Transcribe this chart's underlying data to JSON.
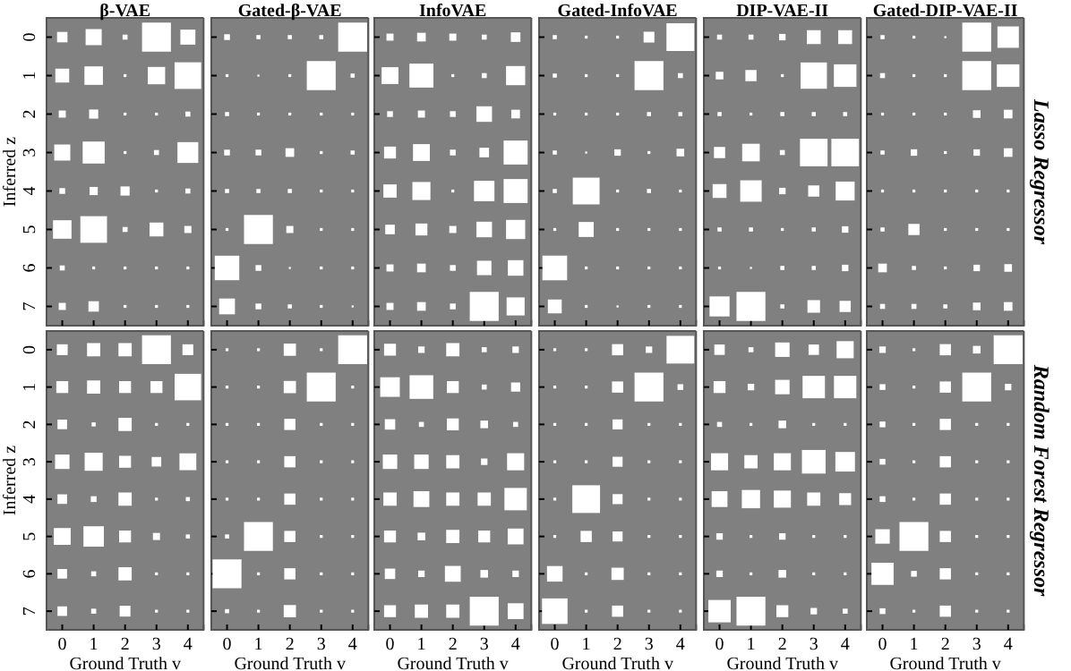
{
  "chart_data": [
    {
      "type": "bubble",
      "title": "β-VAE",
      "ylabel": "Inferred z",
      "tick_labels": "y",
      "marker": "square",
      "color": "#ffffff",
      "xlim": [
        -0.5,
        4.5
      ],
      "ylim": [
        7.5,
        -0.5
      ],
      "xticks": [
        0,
        1,
        2,
        3,
        4
      ],
      "yticks": [
        0,
        1,
        2,
        3,
        4,
        5,
        6,
        7
      ],
      "x": [
        0,
        1,
        2,
        3,
        4,
        0,
        1,
        2,
        3,
        4,
        0,
        1,
        2,
        3,
        4,
        0,
        1,
        2,
        3,
        4,
        0,
        1,
        2,
        3,
        4,
        0,
        1,
        2,
        3,
        4,
        0,
        1,
        2,
        3,
        4,
        0,
        1,
        2,
        3,
        4
      ],
      "values": [
        0,
        0,
        0,
        0,
        0,
        1,
        1,
        1,
        1,
        1,
        2,
        2,
        2,
        2,
        2,
        3,
        3,
        3,
        3,
        3,
        4,
        4,
        4,
        4,
        4,
        5,
        5,
        5,
        5,
        5,
        6,
        6,
        6,
        6,
        6,
        7,
        7,
        7,
        7,
        7
      ],
      "sizes": [
        0.13,
        0.31,
        0.03,
        1,
        0.27,
        0.23,
        0.41,
        0.01,
        0.36,
        0.85,
        0.06,
        0.1,
        0.01,
        0.01,
        0.03,
        0.31,
        0.58,
        0.01,
        0.03,
        0.52,
        0.04,
        0.08,
        0.1,
        0.01,
        0.03,
        0.41,
        0.85,
        0.03,
        0.23,
        0.06,
        0.03,
        0.01,
        0.01,
        0.01,
        0.01,
        0.06,
        0.13,
        0.01,
        0.01,
        0.01
      ]
    },
    {
      "type": "bubble",
      "title": "Gated-β-VAE",
      "tick_labels": false,
      "marker": "square",
      "color": "#ffffff",
      "xlim": [
        -0.5,
        4.5
      ],
      "ylim": [
        7.5,
        -0.5
      ],
      "xticks": [
        0,
        1,
        2,
        3,
        4
      ],
      "yticks": [
        0,
        1,
        2,
        3,
        4,
        5,
        6,
        7
      ],
      "x": [
        0,
        1,
        2,
        3,
        4,
        0,
        1,
        2,
        3,
        4,
        0,
        1,
        2,
        3,
        4,
        0,
        1,
        2,
        3,
        4,
        0,
        1,
        2,
        3,
        4,
        0,
        1,
        2,
        3,
        4,
        0,
        1,
        2,
        3,
        4,
        0,
        1,
        2,
        3,
        4
      ],
      "values": [
        0,
        0,
        0,
        0,
        0,
        1,
        1,
        1,
        1,
        1,
        2,
        2,
        2,
        2,
        2,
        3,
        3,
        3,
        3,
        3,
        4,
        4,
        4,
        4,
        4,
        5,
        5,
        5,
        5,
        5,
        6,
        6,
        6,
        6,
        6,
        7,
        7,
        7,
        7,
        7
      ],
      "sizes": [
        0.04,
        0.02,
        0.02,
        0.02,
        1,
        0.01,
        0.005,
        0.01,
        1,
        0.02,
        0.02,
        0.01,
        0.01,
        0.01,
        0.01,
        0.04,
        0.04,
        0.09,
        0.01,
        0.02,
        0.02,
        0.02,
        0.02,
        0.01,
        0.01,
        0.01,
        1,
        0.06,
        0.01,
        0.01,
        0.72,
        0.04,
        0.005,
        0.01,
        0.01,
        0.3,
        0.04,
        0.02,
        0.01,
        0.005
      ]
    },
    {
      "type": "bubble",
      "title": "InfoVAE",
      "tick_labels": false,
      "marker": "square",
      "color": "#ffffff",
      "xlim": [
        -0.5,
        4.5
      ],
      "ylim": [
        7.5,
        -0.5
      ],
      "xticks": [
        0,
        1,
        2,
        3,
        4
      ],
      "yticks": [
        0,
        1,
        2,
        3,
        4,
        5,
        6,
        7
      ],
      "x": [
        0,
        1,
        2,
        3,
        4,
        0,
        1,
        2,
        3,
        4,
        0,
        1,
        2,
        3,
        4,
        0,
        1,
        2,
        3,
        4,
        0,
        1,
        2,
        3,
        4,
        0,
        1,
        2,
        3,
        4,
        0,
        1,
        2,
        3,
        4,
        0,
        1,
        2,
        3,
        4
      ],
      "values": [
        0,
        0,
        0,
        0,
        0,
        1,
        1,
        1,
        1,
        1,
        2,
        2,
        2,
        2,
        2,
        3,
        3,
        3,
        3,
        3,
        4,
        4,
        4,
        4,
        4,
        5,
        5,
        5,
        5,
        5,
        6,
        6,
        6,
        6,
        6,
        7,
        7,
        7,
        7,
        7
      ],
      "sizes": [
        0.06,
        0.09,
        0.06,
        0.03,
        0.11,
        0.34,
        0.69,
        0.01,
        0.03,
        0.44,
        0.04,
        0.06,
        0.04,
        0.29,
        0.09,
        0.17,
        0.34,
        0.04,
        0.11,
        0.69,
        0.21,
        0.39,
        0.01,
        0.5,
        0.69,
        0.11,
        0.17,
        0.06,
        0.29,
        0.44,
        0.06,
        0.09,
        0.04,
        0.25,
        0.29,
        0.06,
        0.09,
        0.04,
        1,
        0.39
      ]
    },
    {
      "type": "bubble",
      "title": "Gated-InfoVAE",
      "tick_labels": false,
      "marker": "square",
      "color": "#ffffff",
      "xlim": [
        -0.5,
        4.5
      ],
      "ylim": [
        7.5,
        -0.5
      ],
      "xticks": [
        0,
        1,
        2,
        3,
        4
      ],
      "yticks": [
        0,
        1,
        2,
        3,
        4,
        5,
        6,
        7
      ],
      "x": [
        0,
        1,
        2,
        3,
        4,
        0,
        1,
        2,
        3,
        4,
        0,
        1,
        2,
        3,
        4,
        0,
        1,
        2,
        3,
        4,
        0,
        1,
        2,
        3,
        4,
        0,
        1,
        2,
        3,
        4,
        0,
        1,
        2,
        3,
        4,
        0,
        1,
        2,
        3,
        4
      ],
      "values": [
        0,
        0,
        0,
        0,
        0,
        1,
        1,
        1,
        1,
        1,
        2,
        2,
        2,
        2,
        2,
        3,
        3,
        3,
        3,
        3,
        4,
        4,
        4,
        4,
        4,
        5,
        5,
        5,
        5,
        5,
        6,
        6,
        6,
        6,
        6,
        7,
        7,
        7,
        7,
        7
      ],
      "sizes": [
        0.02,
        0.01,
        0.01,
        0.14,
        0.93,
        0.02,
        0.01,
        0.01,
        1,
        0.03,
        0.01,
        0.01,
        0.01,
        0.02,
        0.02,
        0.02,
        0.005,
        0.05,
        0.01,
        0.07,
        0.02,
        0.86,
        0.01,
        0.02,
        0.01,
        0.01,
        0.27,
        0.01,
        0.01,
        0.01,
        0.73,
        0.01,
        0.01,
        0.01,
        0.01,
        0.23,
        0.01,
        0.005,
        0.01,
        0.01
      ]
    },
    {
      "type": "bubble",
      "title": "DIP-VAE-II",
      "tick_labels": false,
      "marker": "square",
      "color": "#ffffff",
      "xlim": [
        -0.5,
        4.5
      ],
      "ylim": [
        7.5,
        -0.5
      ],
      "xticks": [
        0,
        1,
        2,
        3,
        4
      ],
      "yticks": [
        0,
        1,
        2,
        3,
        4,
        5,
        6,
        7
      ],
      "x": [
        0,
        1,
        2,
        3,
        4,
        0,
        1,
        2,
        3,
        4,
        0,
        1,
        2,
        3,
        4,
        0,
        1,
        2,
        3,
        4,
        0,
        1,
        2,
        3,
        4,
        0,
        1,
        2,
        3,
        4,
        0,
        1,
        2,
        3,
        4,
        0,
        1,
        2,
        3,
        4
      ],
      "values": [
        0,
        0,
        0,
        0,
        0,
        1,
        1,
        1,
        1,
        1,
        2,
        2,
        2,
        2,
        2,
        3,
        3,
        3,
        3,
        3,
        4,
        4,
        4,
        4,
        4,
        5,
        5,
        5,
        5,
        5,
        6,
        6,
        6,
        6,
        6,
        7,
        7,
        7,
        7,
        7
      ],
      "sizes": [
        0.03,
        0.03,
        0.05,
        0.23,
        0.23,
        0.07,
        0.15,
        0.01,
        0.83,
        0.61,
        0.02,
        0.01,
        0.02,
        0.02,
        0.02,
        0.15,
        0.37,
        0.03,
        0.91,
        0.91,
        0.23,
        0.55,
        0.05,
        0.15,
        0.43,
        0.02,
        0.02,
        0.01,
        0.02,
        0.05,
        0.01,
        0.005,
        0.02,
        0.02,
        0.05,
        0.48,
        1,
        0.02,
        0.19,
        0.15
      ]
    },
    {
      "type": "bubble",
      "title": "Gated-DIP-VAE-II",
      "tick_labels": false,
      "marker": "square",
      "color": "#ffffff",
      "xlim": [
        -0.5,
        4.5
      ],
      "ylim": [
        7.5,
        -0.5
      ],
      "xticks": [
        0,
        1,
        2,
        3,
        4
      ],
      "yticks": [
        0,
        1,
        2,
        3,
        4,
        5,
        6,
        7
      ],
      "annotations": [
        "Lasso Regressor"
      ],
      "x": [
        0,
        1,
        2,
        3,
        4,
        0,
        1,
        2,
        3,
        4,
        0,
        1,
        2,
        3,
        4,
        0,
        1,
        2,
        3,
        4,
        0,
        1,
        2,
        3,
        4,
        0,
        1,
        2,
        3,
        4,
        0,
        1,
        2,
        3,
        4,
        0,
        1,
        2,
        3,
        4
      ],
      "values": [
        0,
        0,
        0,
        0,
        0,
        1,
        1,
        1,
        1,
        1,
        2,
        2,
        2,
        2,
        2,
        3,
        3,
        3,
        3,
        3,
        4,
        4,
        4,
        4,
        4,
        5,
        5,
        5,
        5,
        5,
        6,
        6,
        6,
        6,
        6,
        7,
        7,
        7,
        7,
        7
      ],
      "sizes": [
        0.02,
        0.01,
        0.005,
        1,
        0.55,
        0.03,
        0.01,
        0.01,
        1,
        0.61,
        0.01,
        0.01,
        0.01,
        0.07,
        0.09,
        0.02,
        0.05,
        0.01,
        0.05,
        0.09,
        0.01,
        0.01,
        0.01,
        0.01,
        0.01,
        0.02,
        0.15,
        0.01,
        0.01,
        0.01,
        0.09,
        0.02,
        0.01,
        0.05,
        0.07,
        0.03,
        0.03,
        0.02,
        0.07,
        0.09
      ]
    },
    {
      "type": "bubble",
      "xlabel": "Ground Truth v",
      "ylabel": "Inferred z",
      "marker": "square",
      "color": "#ffffff",
      "xlim": [
        -0.5,
        4.5
      ],
      "ylim": [
        7.5,
        -0.5
      ],
      "xticks": [
        0,
        1,
        2,
        3,
        4
      ],
      "yticks": [
        0,
        1,
        2,
        3,
        4,
        5,
        6,
        7
      ],
      "x": [
        0,
        1,
        2,
        3,
        4,
        0,
        1,
        2,
        3,
        4,
        0,
        1,
        2,
        3,
        4,
        0,
        1,
        2,
        3,
        4,
        0,
        1,
        2,
        3,
        4,
        0,
        1,
        2,
        3,
        4,
        0,
        1,
        2,
        3,
        4,
        0,
        1,
        2,
        3,
        4
      ],
      "values": [
        0,
        0,
        0,
        0,
        0,
        1,
        1,
        1,
        1,
        1,
        2,
        2,
        2,
        2,
        2,
        3,
        3,
        3,
        3,
        3,
        4,
        4,
        4,
        4,
        4,
        5,
        5,
        5,
        5,
        5,
        6,
        6,
        6,
        6,
        6,
        7,
        7,
        7,
        7,
        7
      ],
      "sizes": [
        0.14,
        0.21,
        0.21,
        1,
        0.14,
        0.17,
        0.21,
        0.17,
        0.17,
        0.84,
        0.11,
        0.02,
        0.21,
        0.01,
        0.01,
        0.25,
        0.39,
        0.17,
        0.11,
        0.34,
        0.11,
        0.04,
        0.21,
        0.01,
        0.02,
        0.34,
        0.5,
        0.17,
        0.06,
        0.02,
        0.11,
        0.03,
        0.21,
        0.01,
        0.01,
        0.11,
        0.03,
        0.14,
        0.01,
        0.01
      ]
    },
    {
      "type": "bubble",
      "xlabel": "Ground Truth v",
      "tick_labels": "x",
      "marker": "square",
      "color": "#ffffff",
      "xlim": [
        -0.5,
        4.5
      ],
      "ylim": [
        7.5,
        -0.5
      ],
      "xticks": [
        0,
        1,
        2,
        3,
        4
      ],
      "yticks": [
        0,
        1,
        2,
        3,
        4,
        5,
        6,
        7
      ],
      "x": [
        0,
        1,
        2,
        3,
        4,
        0,
        1,
        2,
        3,
        4,
        0,
        1,
        2,
        3,
        4,
        0,
        1,
        2,
        3,
        4,
        0,
        1,
        2,
        3,
        4,
        0,
        1,
        2,
        3,
        4,
        0,
        1,
        2,
        3,
        4,
        0,
        1,
        2,
        3,
        4
      ],
      "values": [
        0,
        0,
        0,
        0,
        0,
        1,
        1,
        1,
        1,
        1,
        2,
        2,
        2,
        2,
        2,
        3,
        3,
        3,
        3,
        3,
        4,
        4,
        4,
        4,
        4,
        5,
        5,
        5,
        5,
        5,
        6,
        6,
        6,
        6,
        6,
        7,
        7,
        7,
        7,
        7
      ],
      "sizes": [
        0.01,
        0.01,
        0.18,
        0.01,
        1,
        0.01,
        0.01,
        0.18,
        1,
        0.01,
        0.01,
        0.01,
        0.15,
        0.01,
        0.01,
        0.01,
        0.01,
        0.15,
        0.01,
        0.01,
        0.01,
        0.01,
        0.15,
        0.01,
        0.01,
        0.02,
        1,
        0.15,
        0.01,
        0.01,
        1,
        0.01,
        0.15,
        0.01,
        0.01,
        0.02,
        0.01,
        0.18,
        0.01,
        0.01
      ]
    },
    {
      "type": "bubble",
      "xlabel": "Ground Truth v",
      "tick_labels": "x",
      "marker": "square",
      "color": "#ffffff",
      "xlim": [
        -0.5,
        4.5
      ],
      "ylim": [
        7.5,
        -0.5
      ],
      "xticks": [
        0,
        1,
        2,
        3,
        4
      ],
      "yticks": [
        0,
        1,
        2,
        3,
        4,
        5,
        6,
        7
      ],
      "x": [
        0,
        1,
        2,
        3,
        4,
        0,
        1,
        2,
        3,
        4,
        0,
        1,
        2,
        3,
        4,
        0,
        1,
        2,
        3,
        4,
        0,
        1,
        2,
        3,
        4,
        0,
        1,
        2,
        3,
        4,
        0,
        1,
        2,
        3,
        4,
        0,
        1,
        2,
        3,
        4
      ],
      "values": [
        0,
        0,
        0,
        0,
        0,
        1,
        1,
        1,
        1,
        1,
        2,
        2,
        2,
        2,
        2,
        3,
        3,
        3,
        3,
        3,
        4,
        4,
        4,
        4,
        4,
        5,
        5,
        5,
        5,
        5,
        6,
        6,
        6,
        6,
        6,
        7,
        7,
        7,
        7,
        7
      ],
      "sizes": [
        0.17,
        0.05,
        0.21,
        0.03,
        0.05,
        0.46,
        0.67,
        0.17,
        0.03,
        0.1,
        0.13,
        0.03,
        0.17,
        0.07,
        0.03,
        0.25,
        0.25,
        0.21,
        0.05,
        0.35,
        0.21,
        0.3,
        0.21,
        0.21,
        0.6,
        0.17,
        0.07,
        0.21,
        0.17,
        0.3,
        0.13,
        0.05,
        0.3,
        0.07,
        0.05,
        0.17,
        0.21,
        0.21,
        1,
        0.3
      ]
    },
    {
      "type": "bubble",
      "xlabel": "Ground Truth v",
      "tick_labels": "x",
      "marker": "square",
      "color": "#ffffff",
      "xlim": [
        -0.5,
        4.5
      ],
      "ylim": [
        7.5,
        -0.5
      ],
      "xticks": [
        0,
        1,
        2,
        3,
        4
      ],
      "yticks": [
        0,
        1,
        2,
        3,
        4,
        5,
        6,
        7
      ],
      "x": [
        0,
        1,
        2,
        3,
        4,
        0,
        1,
        2,
        3,
        4,
        0,
        1,
        2,
        3,
        4,
        0,
        1,
        2,
        3,
        4,
        0,
        1,
        2,
        3,
        4,
        0,
        1,
        2,
        3,
        4,
        0,
        1,
        2,
        3,
        4,
        0,
        1,
        2,
        3,
        4
      ],
      "values": [
        0,
        0,
        0,
        0,
        0,
        1,
        1,
        1,
        1,
        1,
        2,
        2,
        2,
        2,
        2,
        3,
        3,
        3,
        3,
        3,
        4,
        4,
        4,
        4,
        4,
        5,
        5,
        5,
        5,
        5,
        6,
        6,
        6,
        6,
        6,
        7,
        7,
        7,
        7,
        7
      ],
      "sizes": [
        0.01,
        0.01,
        0.15,
        0.05,
        0.92,
        0.01,
        0.01,
        0.15,
        1,
        0.04,
        0.01,
        0.01,
        0.12,
        0.01,
        0.01,
        0.01,
        0.01,
        0.12,
        0.01,
        0.01,
        0.01,
        0.92,
        0.12,
        0.01,
        0.01,
        0.01,
        0.15,
        0.12,
        0.01,
        0.01,
        0.29,
        0.01,
        0.18,
        0.01,
        0.01,
        0.78,
        0.01,
        0.15,
        0.01,
        0.01
      ]
    },
    {
      "type": "bubble",
      "xlabel": "Ground Truth v",
      "tick_labels": "x",
      "marker": "square",
      "color": "#ffffff",
      "xlim": [
        -0.5,
        4.5
      ],
      "ylim": [
        7.5,
        -0.5
      ],
      "xticks": [
        0,
        1,
        2,
        3,
        4
      ],
      "yticks": [
        0,
        1,
        2,
        3,
        4,
        5,
        6,
        7
      ],
      "x": [
        0,
        1,
        2,
        3,
        4,
        0,
        1,
        2,
        3,
        4,
        0,
        1,
        2,
        3,
        4,
        0,
        1,
        2,
        3,
        4,
        0,
        1,
        2,
        3,
        4,
        0,
        1,
        2,
        3,
        4,
        0,
        1,
        2,
        3,
        4,
        0,
        1,
        2,
        3,
        4
      ],
      "values": [
        0,
        0,
        0,
        0,
        0,
        1,
        1,
        1,
        1,
        1,
        2,
        2,
        2,
        2,
        2,
        3,
        3,
        3,
        3,
        3,
        4,
        4,
        4,
        4,
        4,
        5,
        5,
        5,
        5,
        5,
        6,
        6,
        6,
        6,
        6,
        7,
        7,
        7,
        7,
        7
      ],
      "sizes": [
        0.13,
        0.03,
        0.25,
        0.13,
        0.35,
        0.17,
        0.05,
        0.25,
        0.6,
        0.6,
        0.03,
        0.01,
        0.07,
        0.01,
        0.01,
        0.35,
        0.21,
        0.35,
        0.67,
        0.46,
        0.3,
        0.4,
        0.35,
        0.21,
        0.17,
        0.05,
        0.01,
        0.05,
        0.01,
        0.01,
        0.05,
        0.01,
        0.07,
        0.01,
        0.01,
        0.6,
        1,
        0.17,
        0.05,
        0.03
      ]
    },
    {
      "type": "bubble",
      "xlabel": "Ground Truth v",
      "tick_labels": "x",
      "marker": "square",
      "color": "#ffffff",
      "xlim": [
        -0.5,
        4.5
      ],
      "ylim": [
        7.5,
        -0.5
      ],
      "xticks": [
        0,
        1,
        2,
        3,
        4
      ],
      "yticks": [
        0,
        1,
        2,
        3,
        4,
        5,
        6,
        7
      ],
      "annotations": [
        "Random Forest Regressor"
      ],
      "x": [
        0,
        1,
        2,
        3,
        4,
        0,
        1,
        2,
        3,
        4,
        0,
        1,
        2,
        3,
        4,
        0,
        1,
        2,
        3,
        4,
        0,
        1,
        2,
        3,
        4,
        0,
        1,
        2,
        3,
        4,
        0,
        1,
        2,
        3,
        4,
        0,
        1,
        2,
        3,
        4
      ],
      "values": [
        0,
        0,
        0,
        0,
        0,
        1,
        1,
        1,
        1,
        1,
        2,
        2,
        2,
        2,
        2,
        3,
        3,
        3,
        3,
        3,
        4,
        4,
        4,
        4,
        4,
        5,
        5,
        5,
        5,
        5,
        6,
        6,
        6,
        6,
        6,
        7,
        7,
        7,
        7,
        7
      ],
      "sizes": [
        0.05,
        0.01,
        0.15,
        0.07,
        1,
        0.04,
        0.01,
        0.15,
        1,
        0.05,
        0.04,
        0.01,
        0.15,
        0.01,
        0.01,
        0.04,
        0.01,
        0.15,
        0.01,
        0.01,
        0.04,
        0.01,
        0.15,
        0.01,
        0.01,
        0.25,
        1,
        0.15,
        0.01,
        0.01,
        0.59,
        0.04,
        0.15,
        0.01,
        0.01,
        0.04,
        0.01,
        0.15,
        0.01,
        0.01
      ]
    }
  ]
}
